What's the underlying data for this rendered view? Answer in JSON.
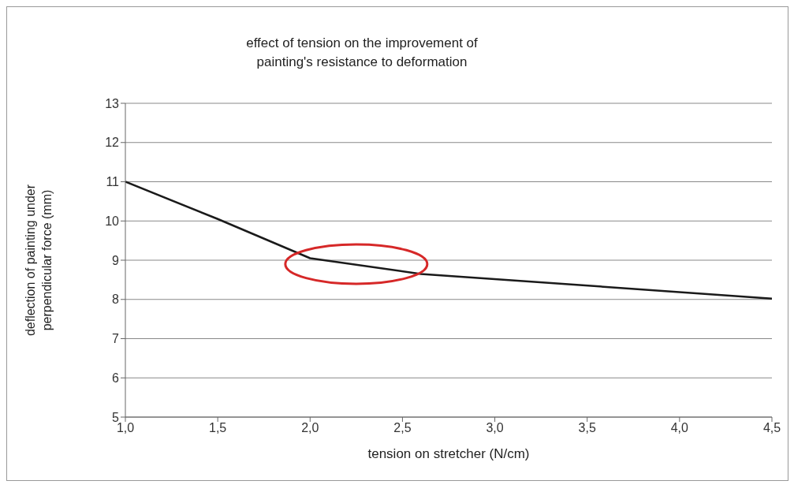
{
  "chart_data": {
    "type": "line",
    "title": "effect of tension on the improvement of\npainting's resistance to deformation",
    "xlabel": "tension on stretcher (N/cm)",
    "ylabel": "deflection of painting under\nperpendicular force (mm)",
    "x": [
      1.0,
      1.5,
      2.0,
      2.6,
      4.5
    ],
    "series": [
      {
        "color": "#1a1a1a",
        "values": [
          11,
          10.05,
          9.05,
          8.65,
          8.02
        ]
      }
    ],
    "xlim": [
      1.0,
      4.5
    ],
    "xticks": [
      {
        "value": 1.0,
        "label": "1,0"
      },
      {
        "value": 1.5,
        "label": "1,5"
      },
      {
        "value": 2.0,
        "label": "2,0"
      },
      {
        "value": 2.5,
        "label": "2,5"
      },
      {
        "value": 3.0,
        "label": "3,0"
      },
      {
        "value": 3.5,
        "label": "3,5"
      },
      {
        "value": 4.0,
        "label": "4,0"
      },
      {
        "value": 4.5,
        "label": "4,5"
      }
    ],
    "ylim": [
      5,
      13
    ],
    "yticks": [
      5,
      6,
      7,
      8,
      9,
      10,
      11,
      12,
      13
    ],
    "grid": "y",
    "legend": false,
    "marker": "none",
    "line_style": "solid"
  }
}
